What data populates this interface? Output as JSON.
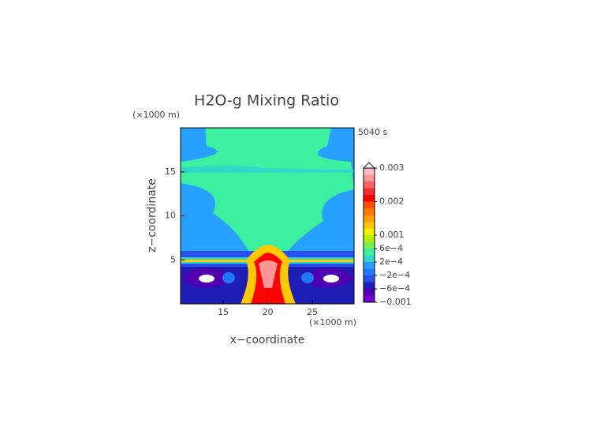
{
  "chart_data": {
    "type": "contour",
    "title": "H2O-g Mixing Ratio",
    "x_label": "x−coordinate",
    "y_label": "z−coordinate",
    "x_unit": "(×1000 m)",
    "y_unit": "(×1000 m)",
    "time_label": "5040 s",
    "xlim": [
      10.2,
      29.7
    ],
    "xticks": [
      15,
      20,
      25
    ],
    "ylim": [
      0,
      20
    ],
    "yticks": [
      5,
      10,
      15
    ],
    "colorbar": {
      "levels": [
        -0.001,
        -0.0008,
        -0.0006,
        -0.0004,
        -0.0002,
        0,
        0.0002,
        0.0004,
        0.0006,
        0.0008,
        0.001,
        0.0012,
        0.0014,
        0.0016,
        0.0018,
        0.002,
        0.0022,
        0.0024,
        0.0026,
        0.0028,
        0.003
      ],
      "colors": [
        "#7800c8",
        "#5000b0",
        "#1e1eb4",
        "#2850f0",
        "#1e78ff",
        "#28a0ff",
        "#30d8c8",
        "#3cf0a0",
        "#78f050",
        "#b4f000",
        "#f0f000",
        "#ffc800",
        "#ffa000",
        "#ff7800",
        "#ff5000",
        "#ff0000",
        "#f03030",
        "#ff6464",
        "#ff9696",
        "#ffbcbc"
      ],
      "ticks": [
        {
          "value": -0.001,
          "label": "−0.001"
        },
        {
          "value": -0.0006,
          "label": "−6e−4"
        },
        {
          "value": -0.0002,
          "label": "−2e−4"
        },
        {
          "value": 0.0002,
          "label": "2e−4"
        },
        {
          "value": 0.0006,
          "label": "6e−4"
        },
        0.001,
        0.002,
        0.003
      ]
    }
  }
}
